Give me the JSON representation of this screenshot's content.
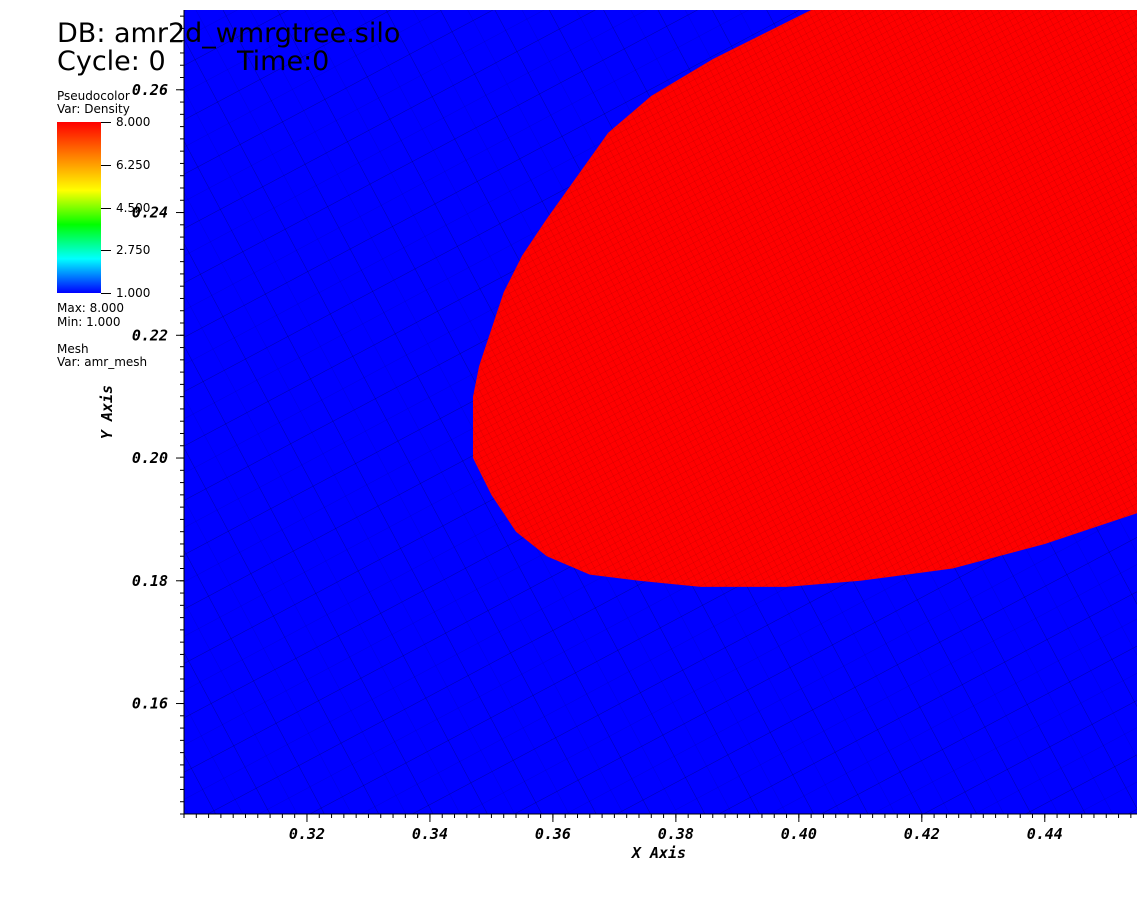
{
  "header": {
    "db_label": "DB: amr2d_wmrgtree.silo",
    "cycle_label": "Cycle: 0",
    "time_label": "Time:0"
  },
  "legend": {
    "plot_type": "Pseudocolor",
    "var_label": "Var: Density",
    "max_label": "Max:  8.000",
    "min_label": "Min:  1.000",
    "ticks": [
      "8.000",
      "6.250",
      "4.500",
      "2.750",
      "1.000"
    ],
    "colormap": [
      "#ff0000",
      "#ff8000",
      "#ffff00",
      "#00ff00",
      "#00ffff",
      "#0000ff"
    ],
    "mesh_plot": "Mesh",
    "mesh_var_label": "Var: amr_mesh"
  },
  "colors": {
    "low_density": "#0000ff",
    "high_density": "#ff0000",
    "mesh_lines": "#000000"
  },
  "chart_data": {
    "type": "heatmap",
    "title": "",
    "xlabel": "X Axis",
    "ylabel": "Y Axis",
    "xlim": [
      0.3,
      0.455
    ],
    "ylim": [
      0.142,
      0.273
    ],
    "x_ticks": [
      "0.32",
      "0.34",
      "0.36",
      "0.38",
      "0.40",
      "0.42",
      "0.44"
    ],
    "y_ticks": [
      "0.16",
      "0.18",
      "0.20",
      "0.22",
      "0.24",
      "0.26"
    ],
    "x_tick_values": [
      0.32,
      0.34,
      0.36,
      0.38,
      0.4,
      0.42,
      0.44
    ],
    "y_tick_values": [
      0.16,
      0.18,
      0.2,
      0.22,
      0.24,
      0.26
    ],
    "value_range": [
      1.0,
      8.0
    ],
    "background_value": 1.0,
    "region_value": 8.0,
    "high_density_region_boundary": [
      [
        0.402,
        0.273
      ],
      [
        0.386,
        0.265
      ],
      [
        0.376,
        0.259
      ],
      [
        0.369,
        0.253
      ],
      [
        0.364,
        0.246
      ],
      [
        0.359,
        0.239
      ],
      [
        0.355,
        0.233
      ],
      [
        0.352,
        0.227
      ],
      [
        0.35,
        0.221
      ],
      [
        0.348,
        0.215
      ],
      [
        0.347,
        0.21
      ],
      [
        0.347,
        0.206
      ],
      [
        0.347,
        0.2
      ],
      [
        0.35,
        0.194
      ],
      [
        0.354,
        0.188
      ],
      [
        0.359,
        0.184
      ],
      [
        0.366,
        0.181
      ],
      [
        0.374,
        0.18
      ],
      [
        0.384,
        0.179
      ],
      [
        0.398,
        0.179
      ],
      [
        0.41,
        0.18
      ],
      [
        0.425,
        0.182
      ],
      [
        0.44,
        0.186
      ],
      [
        0.449,
        0.189
      ],
      [
        0.455,
        0.191
      ],
      [
        0.455,
        0.273
      ]
    ]
  }
}
